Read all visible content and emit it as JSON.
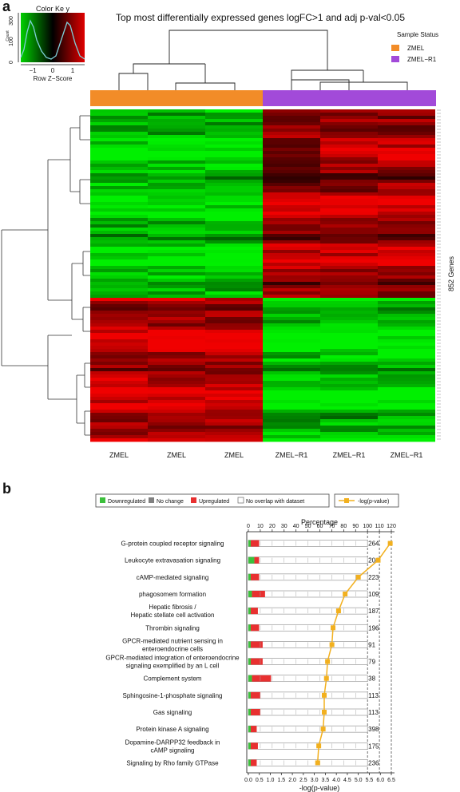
{
  "panel_a": {
    "label": "a",
    "title": "Top most differentially expressed genes logFC>1 and adj p-val<0.05",
    "color_key": {
      "title": "Color   Ke y",
      "xlabel": "Row Z−Score",
      "ylabel": "Count",
      "x_ticks": [
        "−1",
        "0",
        "1"
      ],
      "y_ticks": [
        "0",
        "100",
        "300"
      ]
    },
    "legend": {
      "title": "Sample Status",
      "items": [
        {
          "label": "ZMEL",
          "color": "#f28c28"
        },
        {
          "label": "ZMEL−R1",
          "color": "#a24ad9"
        }
      ]
    },
    "row_label": "852 Genes",
    "columns": [
      "ZMEL",
      "ZMEL",
      "ZMEL",
      "ZMEL−R1",
      "ZMEL−R1",
      "ZMEL−R1"
    ],
    "colors": {
      "green": "#00d000",
      "red": "#e00000",
      "black": "#000000"
    }
  },
  "panel_b": {
    "label": "b",
    "legend": {
      "items": [
        {
          "label": "Downregulated",
          "color": "#3cc03c"
        },
        {
          "label": "No change",
          "color": "#808080"
        },
        {
          "label": "Upregulated",
          "color": "#e83030"
        },
        {
          "label": "No overlap with dataset",
          "color": "#ffffff"
        }
      ],
      "line_label": "-log(p-value)",
      "line_color": "#f2b01e"
    },
    "chart_data": {
      "type": "bar",
      "top_axis_label": "Percentage",
      "top_ticks": [
        "0",
        "10",
        "20",
        "30",
        "40",
        "50",
        "60",
        "70",
        "80",
        "90",
        "100",
        "110",
        "120"
      ],
      "percent_range": [
        0,
        120
      ],
      "bottom_axis_label": "-log(p-value)",
      "bottom_ticks": [
        "0.0",
        "0.5",
        "1.0",
        "1.5",
        "2.0",
        "2.5",
        "3.0",
        "3.5",
        "4.0",
        "4.5",
        "5.0",
        "5.5",
        "6.0",
        "6.5"
      ],
      "logp_range": [
        0,
        6.5
      ],
      "categories": [
        {
          "name": "G-protein coupled receptor signaling",
          "total": "264",
          "down": 2,
          "up": 7,
          "logp": 6.45
        },
        {
          "name": "Leukocyte extravasation signaling",
          "total": "204",
          "down": 5,
          "up": 4,
          "logp": 5.9
        },
        {
          "name": "cAMP-mediated signaling",
          "total": "223",
          "down": 2,
          "up": 7,
          "logp": 5.0
        },
        {
          "name": "phagosomem formation",
          "total": "109",
          "down": 3,
          "up": 11,
          "logp": 4.4
        },
        {
          "name": "Hepatic fibrosis /\nHepatic stellate cell activation",
          "total": "187",
          "down": 2,
          "up": 6,
          "logp": 4.1
        },
        {
          "name": "Thrombin signaling",
          "total": "196",
          "down": 2,
          "up": 7,
          "logp": 3.85
        },
        {
          "name": "GPCR-mediated nutrient sensing in\nenteroendocrine cells",
          "total": "91",
          "down": 2,
          "up": 10,
          "logp": 3.8
        },
        {
          "name": "GPCR-mediated integration of enteroendocrine\nsignaling exemplified by an L cell",
          "total": "79",
          "down": 2,
          "up": 10,
          "logp": 3.6
        },
        {
          "name": "Complement system",
          "total": "38",
          "down": 3,
          "up": 16,
          "logp": 3.55
        },
        {
          "name": "Sphingosine-1-phosphate signaling",
          "total": "113",
          "down": 2,
          "up": 8,
          "logp": 3.45
        },
        {
          "name": "Gas signaling",
          "total": "113",
          "down": 2,
          "up": 8,
          "logp": 3.45
        },
        {
          "name": "Protein kinase A signaling",
          "total": "398",
          "down": 2,
          "up": 5,
          "logp": 3.4
        },
        {
          "name": "Dopamine-DARPP32 feedback in\ncAMP signaling",
          "total": "175",
          "down": 2,
          "up": 6,
          "logp": 3.2
        },
        {
          "name": "Signaling by Rho family GTPase",
          "total": "236",
          "down": 2,
          "up": 5,
          "logp": 3.15
        }
      ]
    }
  }
}
